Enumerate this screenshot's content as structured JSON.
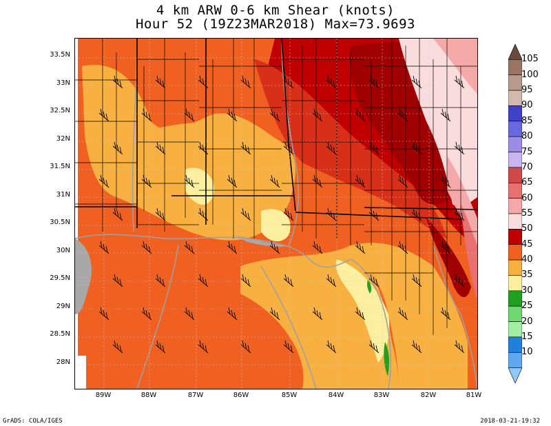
{
  "title": {
    "line1": "4 km ARW 0-6 km Shear (knots)",
    "line2": "Hour 52 (19Z23MAR2018) Max=73.9693"
  },
  "axes": {
    "latitudes": [
      "33.5N",
      "33N",
      "32.5N",
      "32N",
      "31.5N",
      "31N",
      "30.5N",
      "30N",
      "29.5N",
      "29N",
      "28.5N",
      "28N"
    ],
    "longitudes": [
      "89W",
      "88W",
      "87W",
      "86W",
      "85W",
      "84W",
      "83W",
      "82W",
      "81W"
    ]
  },
  "colorbar": {
    "levels": [
      "105",
      "100",
      "95",
      "90",
      "85",
      "80",
      "75",
      "70",
      "65",
      "60",
      "55",
      "50",
      "45",
      "40",
      "35",
      "30",
      "25",
      "20",
      "15",
      "10"
    ],
    "colors": [
      "#6b4a3a",
      "#9c7464",
      "#b89a8c",
      "#d3b9ad",
      "#4040c8",
      "#6868e0",
      "#9c8ce8",
      "#c8b4f0",
      "#d04848",
      "#e87070",
      "#f4a8a8",
      "#fadcdc",
      "#c00000",
      "#f06020",
      "#f8b040",
      "#fcf0a0",
      "#20a020",
      "#70d870",
      "#a0f0a0",
      "#2080e0",
      "#60a8f0",
      "#90c8f8"
    ]
  },
  "footer": {
    "left": "GrADS: COLA/IGES",
    "right": "2018-03-21-19:32"
  }
}
